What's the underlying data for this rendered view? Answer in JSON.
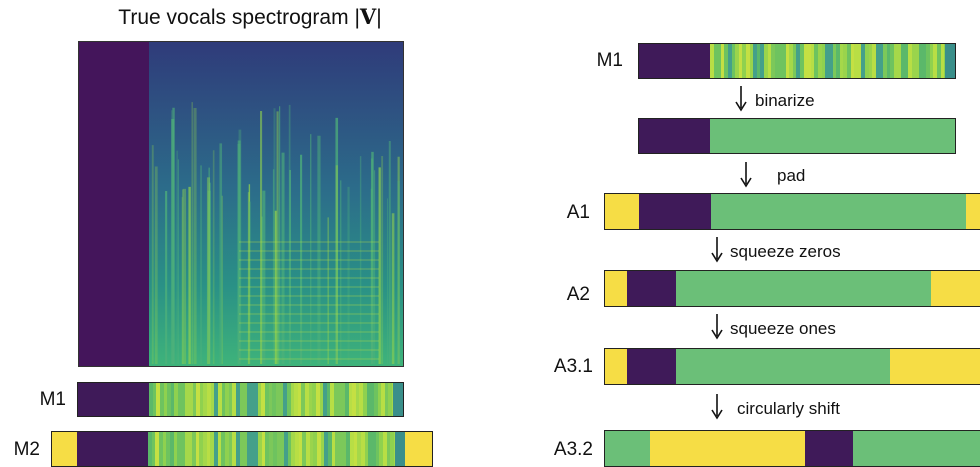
{
  "title": {
    "text": "True vocals spectrogram",
    "symbol_open": "|",
    "symbol": "V",
    "symbol_close": "|"
  },
  "left_labels": {
    "m1": "M1",
    "m2": "M2"
  },
  "right_labels": {
    "m1": "M1",
    "a1": "A1",
    "a2": "A2",
    "a31": "A3.1",
    "a32": "A3.2"
  },
  "steps": {
    "binarize": "binarize",
    "pad": "pad",
    "squeeze_zeros": "squeeze zeros",
    "squeeze_ones": "squeeze ones",
    "circular_shift": "circularly shift"
  },
  "colors": {
    "dark_purple": "#3f1a59",
    "green": "#6bbf78",
    "yellow": "#f6dd45",
    "teal": "#3a8f8a",
    "lime": "#a8d64a"
  }
}
